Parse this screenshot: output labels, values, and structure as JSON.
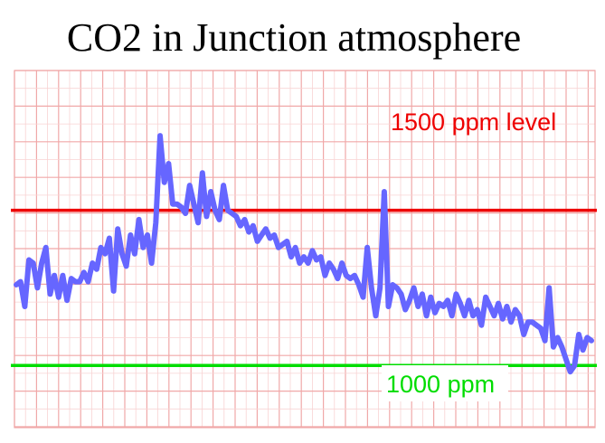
{
  "chart_data": {
    "type": "line",
    "title": "CO2 in Junction atmosphere",
    "xlabel": "",
    "ylabel": "",
    "grid": true,
    "legend": "none",
    "ylim": [
      800,
      1950
    ],
    "series": [
      {
        "color": "#6666ff",
        "values": [
          1260,
          1270,
          1190,
          1340,
          1330,
          1250,
          1330,
          1380,
          1230,
          1290,
          1220,
          1290,
          1210,
          1280,
          1270,
          1270,
          1300,
          1270,
          1330,
          1310,
          1380,
          1360,
          1410,
          1240,
          1440,
          1360,
          1320,
          1420,
          1360,
          1470,
          1380,
          1420,
          1330,
          1460,
          1740,
          1590,
          1650,
          1520,
          1520,
          1510,
          1490,
          1580,
          1520,
          1460,
          1620,
          1480,
          1560,
          1500,
          1470,
          1580,
          1500,
          1490,
          1480,
          1450,
          1470,
          1430,
          1450,
          1400,
          1420,
          1440,
          1410,
          1420,
          1380,
          1390,
          1400,
          1350,
          1380,
          1330,
          1350,
          1330,
          1370,
          1340,
          1350,
          1290,
          1330,
          1310,
          1280,
          1330,
          1290,
          1280,
          1290,
          1260,
          1220,
          1380,
          1250,
          1160,
          1250,
          1560,
          1190,
          1260,
          1250,
          1230,
          1180,
          1210,
          1250,
          1190,
          1230,
          1160,
          1220,
          1170,
          1200,
          1190,
          1210,
          1160,
          1230,
          1200,
          1160,
          1210,
          1160,
          1180,
          1130,
          1220,
          1190,
          1160,
          1200,
          1150,
          1190,
          1140,
          1180,
          1160,
          1100,
          1140,
          1140,
          1130,
          1120,
          1080,
          1250,
          1060,
          1090,
          1060,
          1020,
          980,
          1000,
          1100,
          1050,
          1090,
          1080
        ]
      }
    ],
    "reference_lines": [
      {
        "value": 1500,
        "label": "1500 ppm level",
        "color": "#ee0000"
      },
      {
        "value": 1000,
        "label": "1000 ppm",
        "color": "#00dd00"
      }
    ]
  }
}
